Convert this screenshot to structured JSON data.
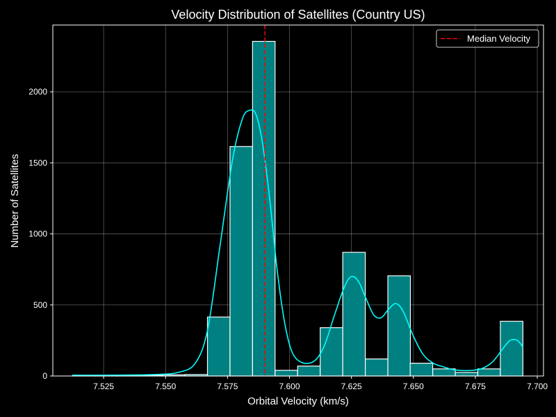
{
  "chart_data": {
    "type": "bar",
    "title": "Velocity Distribution of Satellites (Country US)",
    "xlabel": "Orbital Velocity (km/s)",
    "ylabel": "Number of Satellites",
    "xlim": [
      7.5045,
      7.7025
    ],
    "ylim": [
      0,
      2470
    ],
    "xticks": [
      7.525,
      7.55,
      7.575,
      7.6,
      7.625,
      7.65,
      7.675,
      7.7
    ],
    "xtick_labels": [
      "7.525",
      "7.550",
      "7.575",
      "7.600",
      "7.625",
      "7.650",
      "7.675",
      "7.700"
    ],
    "yticks": [
      0,
      500,
      1000,
      1500,
      2000
    ],
    "ytick_labels": [
      "0",
      "500",
      "1000",
      "1500",
      "2000"
    ],
    "grid": true,
    "bin_width": 0.00909,
    "bins_left": [
      7.5124,
      7.5215,
      7.5306,
      7.5397,
      7.5487,
      7.5578,
      7.5669,
      7.576,
      7.5851,
      7.5942,
      7.6033,
      7.6124,
      7.6215,
      7.6306,
      7.6397,
      7.6487,
      7.6578,
      7.6669,
      7.676,
      7.6851
    ],
    "counts": [
      3,
      2,
      4,
      6,
      8,
      10,
      415,
      1615,
      2355,
      40,
      70,
      340,
      870,
      120,
      705,
      90,
      50,
      25,
      50,
      385
    ],
    "bar_fill": "#008080",
    "bar_edge": "#ffffff",
    "kde": {
      "color": "#00ffff",
      "x": [
        7.5124,
        7.53,
        7.545,
        7.555,
        7.562,
        7.567,
        7.572,
        7.577,
        7.581,
        7.584,
        7.5865,
        7.589,
        7.592,
        7.595,
        7.598,
        7.601,
        7.605,
        7.61,
        7.614,
        7.618,
        7.622,
        7.625,
        7.628,
        7.631,
        7.634,
        7.637,
        7.64,
        7.643,
        7.646,
        7.65,
        7.654,
        7.658,
        7.662,
        7.666,
        7.67,
        7.674,
        7.678,
        7.682,
        7.686,
        7.689,
        7.692,
        7.6943
      ],
      "y": [
        5,
        6,
        10,
        25,
        90,
        330,
        920,
        1520,
        1810,
        1870,
        1840,
        1650,
        1250,
        750,
        380,
        170,
        95,
        105,
        210,
        420,
        620,
        700,
        660,
        540,
        430,
        410,
        470,
        510,
        450,
        280,
        150,
        90,
        65,
        45,
        38,
        40,
        55,
        100,
        190,
        250,
        250,
        200
      ]
    },
    "median": 7.5901,
    "median_color": "#ff0000",
    "legend": {
      "position": "top-right",
      "entries": [
        "Median Velocity"
      ]
    }
  }
}
